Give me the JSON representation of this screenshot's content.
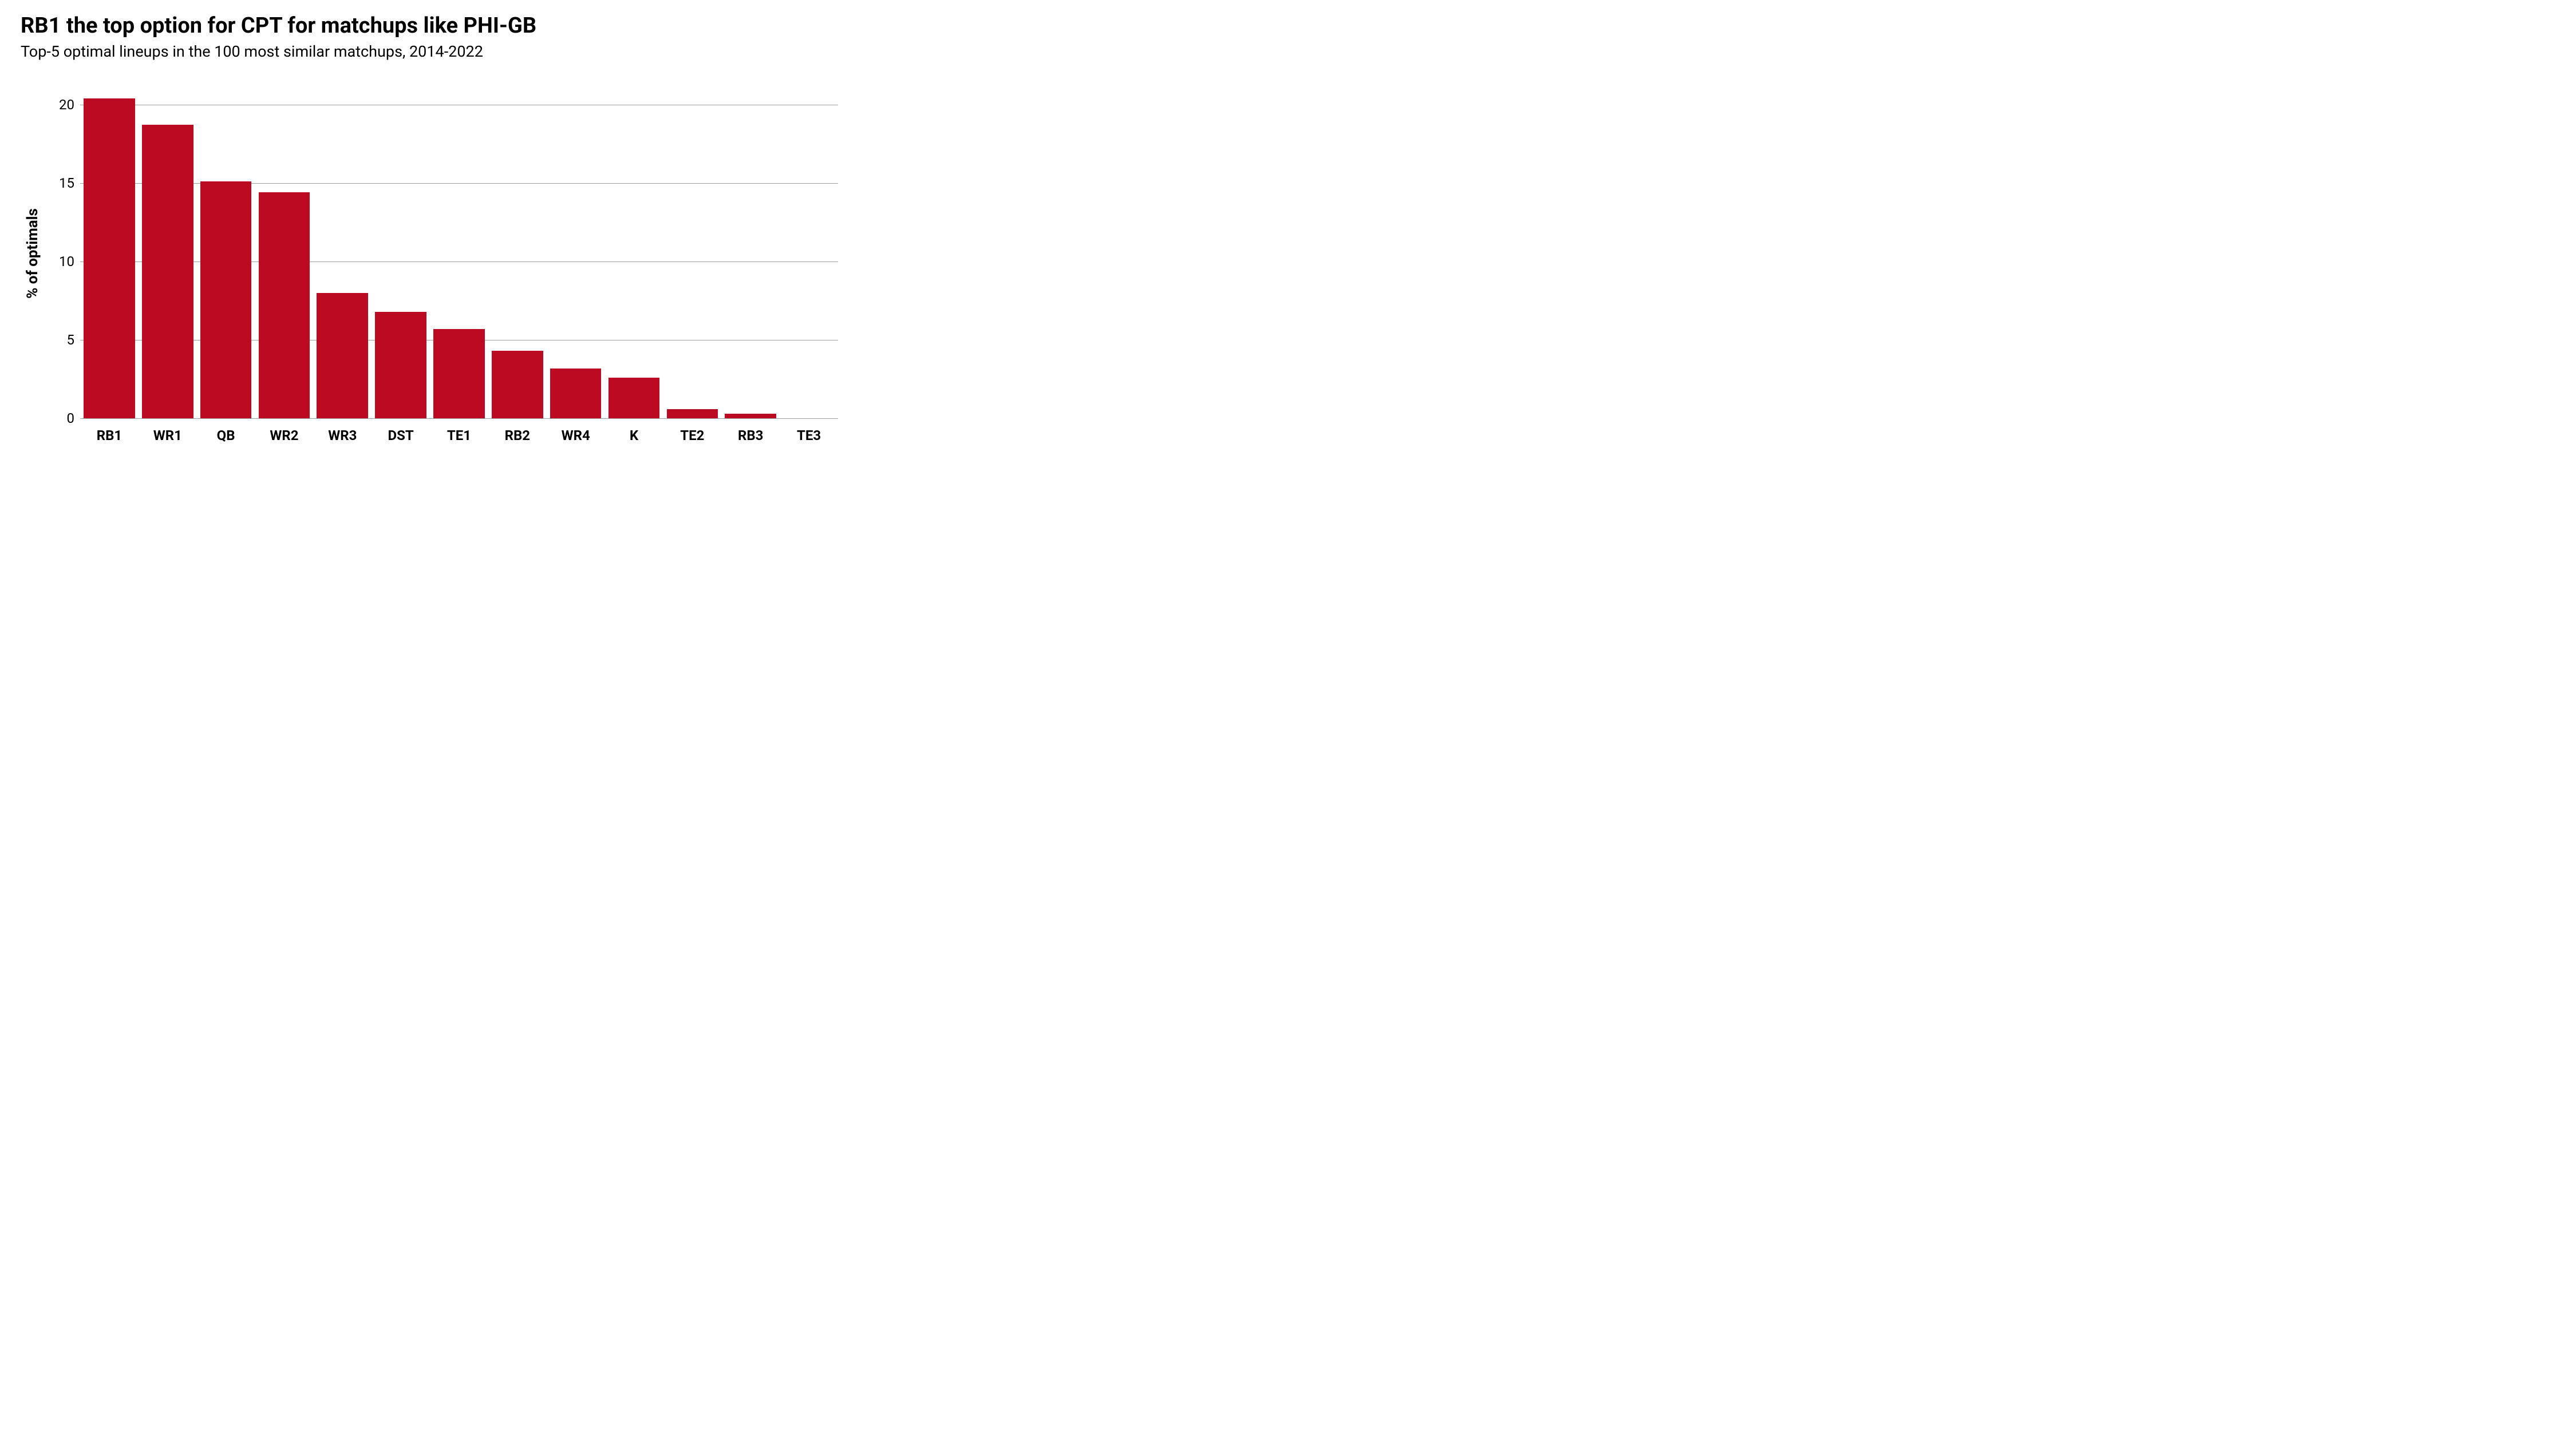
{
  "chart": {
    "type": "bar",
    "title": "RB1 the top option for CPT for matchups like PHI-GB",
    "subtitle": "Top-5 optimal lineups in the 100 most similar matchups, 2014-2022",
    "title_fontsize": 38,
    "subtitle_fontsize": 27,
    "ylabel": "% of optimals",
    "ylabel_fontsize": 26,
    "ylim": [
      0,
      21.5
    ],
    "yticks": [
      0,
      5,
      10,
      15,
      20
    ],
    "ytick_fontsize": 24,
    "xlabel_fontsize": 24,
    "categories": [
      "RB1",
      "WR1",
      "QB",
      "WR2",
      "WR3",
      "DST",
      "TE1",
      "RB2",
      "WR4",
      "K",
      "TE2",
      "RB3",
      "TE3"
    ],
    "values": [
      20.4,
      18.7,
      15.1,
      14.4,
      8.0,
      6.8,
      5.7,
      4.3,
      3.2,
      2.6,
      0.6,
      0.3,
      0.0
    ],
    "bar_color": "#bb0a21",
    "bar_width": 0.88,
    "background_color": "#ffffff",
    "grid_color": "#9e9e9e",
    "grid_width": 1,
    "font_family": "Roboto, Helvetica Neue, Arial, sans-serif"
  }
}
